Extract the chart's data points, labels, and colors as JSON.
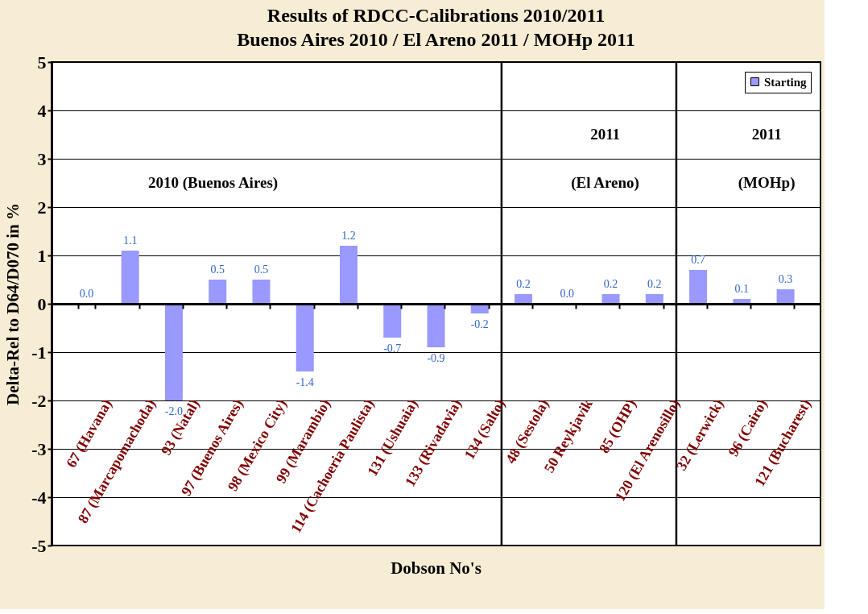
{
  "chart_data": {
    "type": "bar",
    "title": [
      "Results of RDCC-Calibrations 2010/2011",
      "Buenos Aires 2010 / El Areno 2011 / MOHp 2011"
    ],
    "xlabel": "Dobson No's",
    "ylabel": "Delta-Rel to D64/D070 in %",
    "categories": [
      "67 (Havana)",
      "87 (Marcapomachoda)",
      "93 (Natal)",
      "97 (Buenos Aires)",
      "98 (Mexico City)",
      "99 (Marambio)",
      "114 (Cachoeria Paulista)",
      "131 (Ushuaia)",
      "133 (Rivadavia)",
      "134 (Salto)",
      "48 (Sestola)",
      "50 Reykjavik",
      "85 (OHP)",
      "120 (El Arenosillo)",
      "32 (Lerwick)",
      "96 (Cairo)",
      "121 (Bucharest)"
    ],
    "series": [
      {
        "name": "Starting",
        "color": "#9999ff",
        "values": [
          0.0,
          1.1,
          -2.0,
          0.5,
          0.5,
          -1.4,
          1.2,
          -0.7,
          -0.9,
          -0.2,
          0.2,
          0.0,
          0.2,
          0.2,
          0.7,
          0.1,
          0.3
        ],
        "value_labels": [
          "0.0",
          "1.1",
          "-2.0",
          "0.5",
          "0.5",
          "-1.4",
          "1.2",
          "-0.7",
          "-0.9",
          "-0.2",
          "0.2",
          "0.0",
          "0.2",
          "0.2",
          "0.7",
          "0.1",
          "0.3"
        ]
      }
    ],
    "ylim": [
      -5,
      5
    ],
    "yticks": [
      -5,
      -4,
      -3,
      -2,
      -1,
      0,
      1,
      2,
      3,
      4,
      5
    ],
    "grid": "y",
    "legend": "top right",
    "annotations": [
      "2010 (Buenos Aires)",
      "2011",
      "(El Areno)",
      "2011",
      "(MOHp)"
    ]
  }
}
